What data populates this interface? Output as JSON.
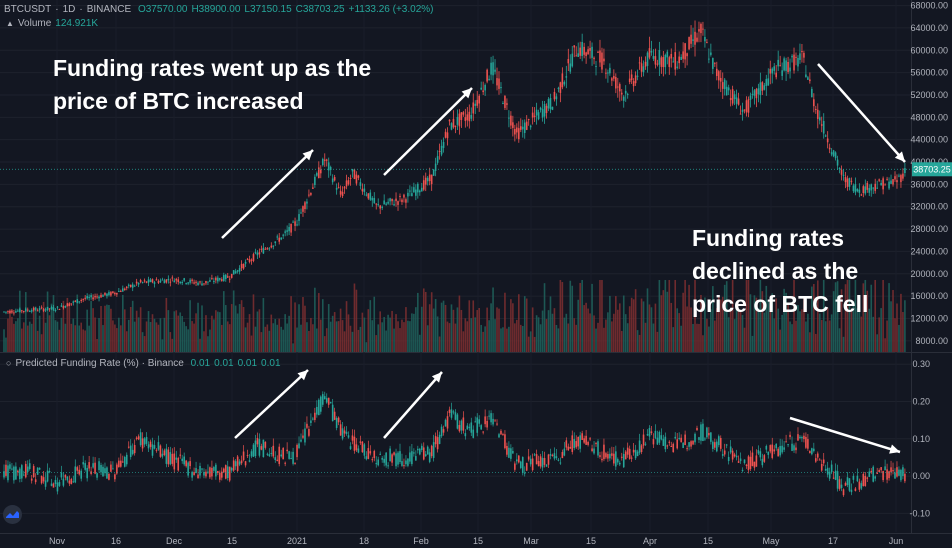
{
  "header": {
    "symbol": "BTCUSDT",
    "sep1": "·",
    "interval": "1D",
    "sep2": "·",
    "exchange": "BINANCE",
    "ohlc": {
      "open": "O37570.00",
      "high": "H38900.00",
      "low": "L37150.15",
      "close": "C38703.25",
      "change": "+1133.26 (+3.02%)"
    },
    "volume_label": "Volume",
    "volume_value": "124.921K"
  },
  "indicator": {
    "label": "Predicted Funding Rate (%) · Binance",
    "values": [
      "0.01",
      "0.01",
      "0.01",
      "0.01"
    ]
  },
  "annotations": {
    "top_left": "Funding rates went up as the\nprice of BTC increased",
    "right": "Funding rates\ndeclined as the\nprice of BTC fell"
  },
  "colors": {
    "background": "#131722",
    "up": "#26a69a",
    "down": "#ef5350",
    "price_tag": "#26a69a",
    "arrow": "#ffffff"
  },
  "chart_data": [
    {
      "type": "candlestick",
      "title": "BTCUSDT · 1D · BINANCE",
      "price_axis_ticks": [
        8000,
        12000,
        16000,
        20000,
        24000,
        28000,
        32000,
        36000,
        40000,
        44000,
        48000,
        52000,
        56000,
        60000,
        64000,
        68000
      ],
      "ylim": [
        6000,
        69000
      ],
      "last_price": "38703.25",
      "x_ticks": [
        "Nov",
        "16",
        "Dec",
        "15",
        "2021",
        "18",
        "Feb",
        "15",
        "Mar",
        "15",
        "Apr",
        "15",
        "May",
        "17",
        "Jun"
      ],
      "close_series": [
        {
          "date": "Oct 25",
          "close": 13600
        },
        {
          "date": "Nov 1",
          "close": 13800
        },
        {
          "date": "Nov 8",
          "close": 15500
        },
        {
          "date": "Nov 16",
          "close": 16500
        },
        {
          "date": "Nov 23",
          "close": 18400
        },
        {
          "date": "Dec 1",
          "close": 19000
        },
        {
          "date": "Dec 8",
          "close": 18300
        },
        {
          "date": "Dec 15",
          "close": 19500
        },
        {
          "date": "Dec 22",
          "close": 23500
        },
        {
          "date": "Dec 29",
          "close": 27000
        },
        {
          "date": "Jan 1",
          "close": 29300
        },
        {
          "date": "Jan 8",
          "close": 40500
        },
        {
          "date": "Jan 12",
          "close": 34000
        },
        {
          "date": "Jan 15",
          "close": 38000
        },
        {
          "date": "Jan 21",
          "close": 32000
        },
        {
          "date": "Jan 28",
          "close": 33500
        },
        {
          "date": "Feb 4",
          "close": 37000
        },
        {
          "date": "Feb 9",
          "close": 46500
        },
        {
          "date": "Feb 15",
          "close": 48500
        },
        {
          "date": "Feb 21",
          "close": 57000
        },
        {
          "date": "Feb 28",
          "close": 45000
        },
        {
          "date": "Mar 7",
          "close": 51000
        },
        {
          "date": "Mar 13",
          "close": 60500
        },
        {
          "date": "Mar 20",
          "close": 58000
        },
        {
          "date": "Mar 25",
          "close": 52000
        },
        {
          "date": "Apr 1",
          "close": 59000
        },
        {
          "date": "Apr 8",
          "close": 58000
        },
        {
          "date": "Apr 14",
          "close": 63500
        },
        {
          "date": "Apr 18",
          "close": 56000
        },
        {
          "date": "Apr 25",
          "close": 49000
        },
        {
          "date": "May 2",
          "close": 56500
        },
        {
          "date": "May 9",
          "close": 58500
        },
        {
          "date": "May 12",
          "close": 50000
        },
        {
          "date": "May 19",
          "close": 37000
        },
        {
          "date": "May 23",
          "close": 35000
        },
        {
          "date": "May 28",
          "close": 36000
        },
        {
          "date": "Jun 1",
          "close": 36500
        },
        {
          "date": "Jun 4",
          "close": 38703
        }
      ],
      "volume": {
        "label": "Volume",
        "last": "124.921K"
      }
    },
    {
      "type": "bar",
      "title": "Predicted Funding Rate (%) · Binance",
      "axis_ticks": [
        -0.1,
        0.0,
        0.1,
        0.2,
        0.3
      ],
      "ylim": [
        -0.15,
        0.33
      ],
      "series": [
        {
          "name": "Predicted Funding Rate (%)",
          "points": [
            {
              "date": "Oct 25",
              "value": 0.01
            },
            {
              "date": "Nov 1",
              "value": -0.02
            },
            {
              "date": "Nov 8",
              "value": 0.02
            },
            {
              "date": "Nov 16",
              "value": 0.01
            },
            {
              "date": "Nov 23",
              "value": 0.1
            },
            {
              "date": "Dec 1",
              "value": 0.04
            },
            {
              "date": "Dec 8",
              "value": 0.01
            },
            {
              "date": "Dec 15",
              "value": 0.01
            },
            {
              "date": "Dec 22",
              "value": 0.08
            },
            {
              "date": "Dec 29",
              "value": 0.05
            },
            {
              "date": "Jan 1",
              "value": 0.06
            },
            {
              "date": "Jan 8",
              "value": 0.22
            },
            {
              "date": "Jan 12",
              "value": 0.12
            },
            {
              "date": "Jan 15",
              "value": 0.09
            },
            {
              "date": "Jan 21",
              "value": 0.05
            },
            {
              "date": "Jan 28",
              "value": 0.05
            },
            {
              "date": "Feb 4",
              "value": 0.06
            },
            {
              "date": "Feb 9",
              "value": 0.16
            },
            {
              "date": "Feb 15",
              "value": 0.12
            },
            {
              "date": "Feb 21",
              "value": 0.16
            },
            {
              "date": "Feb 28",
              "value": 0.03
            },
            {
              "date": "Mar 7",
              "value": 0.04
            },
            {
              "date": "Mar 13",
              "value": 0.1
            },
            {
              "date": "Mar 20",
              "value": 0.06
            },
            {
              "date": "Mar 25",
              "value": 0.04
            },
            {
              "date": "Apr 1",
              "value": 0.11
            },
            {
              "date": "Apr 8",
              "value": 0.08
            },
            {
              "date": "Apr 14",
              "value": 0.12
            },
            {
              "date": "Apr 18",
              "value": 0.09
            },
            {
              "date": "Apr 25",
              "value": 0.03
            },
            {
              "date": "May 2",
              "value": 0.07
            },
            {
              "date": "May 9",
              "value": 0.1
            },
            {
              "date": "May 12",
              "value": 0.06
            },
            {
              "date": "May 19",
              "value": -0.03
            },
            {
              "date": "May 23",
              "value": -0.02
            },
            {
              "date": "May 28",
              "value": 0.01
            },
            {
              "date": "Jun 1",
              "value": 0.01
            },
            {
              "date": "Jun 4",
              "value": 0.01
            }
          ]
        }
      ]
    }
  ]
}
